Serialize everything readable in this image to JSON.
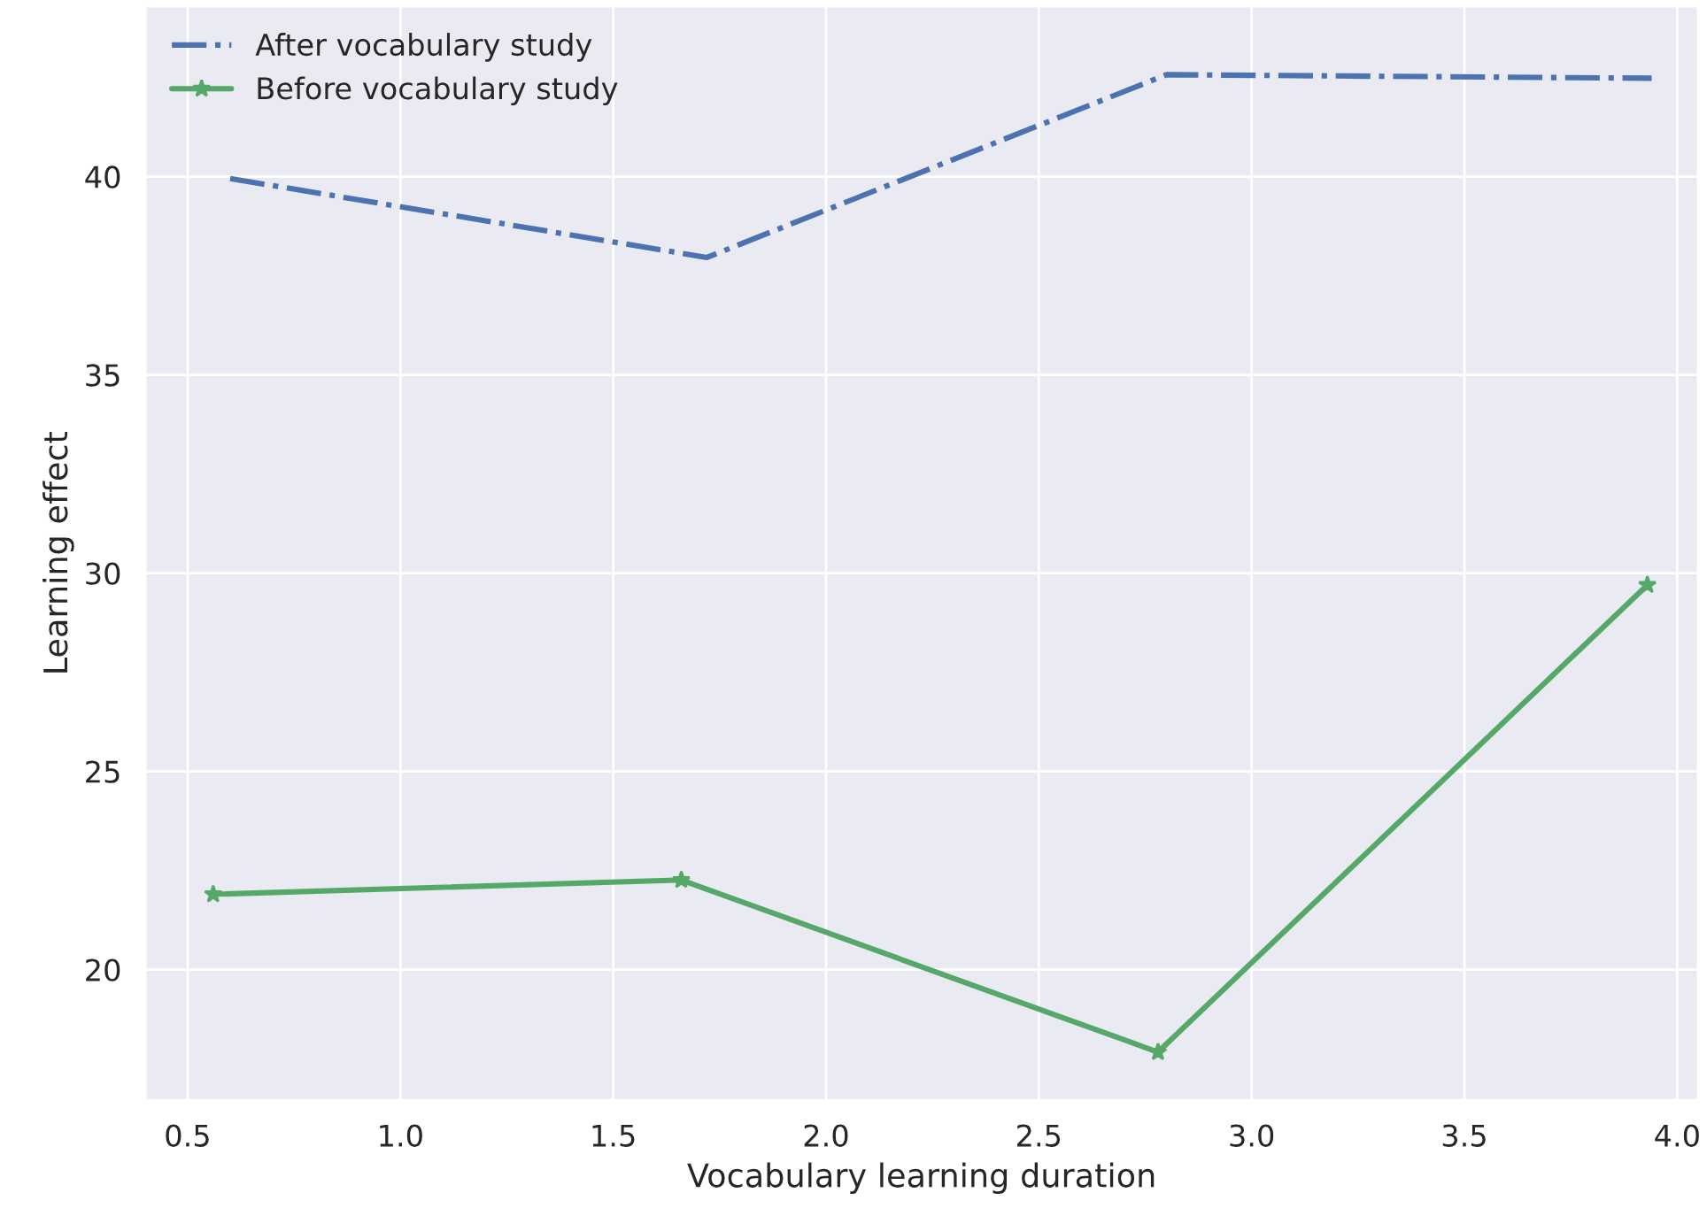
{
  "chart_data": {
    "type": "line",
    "xlabel": "Vocabulary learning duration",
    "ylabel": "Learning effect",
    "series": [
      {
        "name": "After vocabulary study",
        "color": "#4c72b0",
        "line_style": "dashdot",
        "marker": "none",
        "x": [
          0.6,
          1.72,
          2.8,
          3.94
        ],
        "values": [
          39.95,
          37.96,
          42.57,
          42.48
        ]
      },
      {
        "name": "Before vocabulary study",
        "color": "#55a868",
        "line_style": "solid",
        "marker": "star",
        "x": [
          0.56,
          1.66,
          2.78,
          3.93
        ],
        "values": [
          21.9,
          22.26,
          17.92,
          29.7
        ]
      }
    ],
    "xlim": [
      0.4,
      4.05
    ],
    "ylim": [
      16.7,
      44.3
    ],
    "xticks": [
      0.5,
      {
        "value": 1,
        "label": "1.0"
      },
      1.5,
      {
        "value": 2,
        "label": "2.0"
      },
      2.5,
      {
        "value": 3,
        "label": "3.0"
      },
      3.5,
      {
        "value": 4,
        "label": "4.0"
      }
    ],
    "yticks": [
      20,
      25,
      30,
      35,
      40
    ],
    "grid": true,
    "legend": "top left"
  }
}
